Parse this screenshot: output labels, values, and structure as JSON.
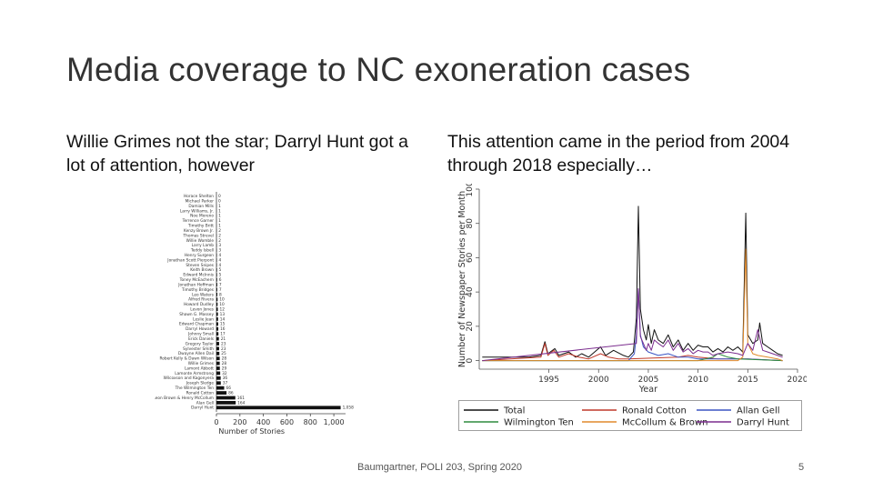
{
  "slide": {
    "title": "Media coverage to NC exoneration cases",
    "left_heading": "Willie Grimes not the star; Darryl Hunt got a lot of attention, however",
    "right_heading": "This attention came in the period from 2004 through 2018 especially…",
    "footer": "Baumgartner, POLI 203, Spring 2020",
    "page_number": "5"
  },
  "chart_data": [
    {
      "type": "bar",
      "orientation": "horizontal",
      "xlabel": "Number of Stories",
      "xlim": [
        0,
        1100
      ],
      "xticks": [
        "0",
        "200",
        "400",
        "600",
        "800",
        "1,000"
      ],
      "categories": [
        "Horace Shelton",
        "Michael Parker",
        "Damian Mills",
        "Larry Williams, Jr.",
        "Noe Moreno",
        "Terrence Garner",
        "Timothy Britt",
        "Kenzy Brown Jr.",
        "Thomas Strevel",
        "Willie Womble",
        "Larry Lamb",
        "Teddy Isbell",
        "Henry Surgeon",
        "Jonathan Scott Pierpont",
        "Steven Snipes",
        "Keith Brown",
        "Edward McInnis",
        "Toney McEachern",
        "Jonathan Hoffman",
        "Timothy Bridges",
        "Leo Waters",
        "Alfred Rivera",
        "Howard Dudley",
        "Levon Jones",
        "Shawn G. Massey",
        "Leslie Jean",
        "Edward Chapman",
        "Darryl Howard",
        "Johnny Small",
        "Erick Daniels",
        "Gregory Taylor",
        "Sylvester Smith",
        "Dwayne Allen Dail",
        "Robert Kelly & Dawn Wilson",
        "Willie Grimes",
        "Lamont Abbott",
        "Lamonte Armstrong",
        "Wilcoxson and Kagonyera",
        "Joseph Sledge",
        "The Wilmington Ten",
        "Ronald Cotton",
        "Leon Brown & Henry McCollum",
        "Alan Gell",
        "Darryl Hunt"
      ],
      "values": [
        0,
        0,
        1,
        1,
        1,
        1,
        1,
        2,
        2,
        2,
        3,
        3,
        4,
        4,
        4,
        5,
        5,
        6,
        7,
        7,
        8,
        10,
        10,
        12,
        13,
        14,
        15,
        16,
        17,
        21,
        23,
        23,
        25,
        28,
        28,
        29,
        32,
        36,
        37,
        66,
        86,
        161,
        164,
        1058
      ],
      "value_labels": [
        "0",
        "0",
        "1",
        "1",
        "1",
        "1",
        "1",
        "2",
        "2",
        "2",
        "3",
        "3",
        "4",
        "4",
        "4",
        "5",
        "5",
        "6",
        "7",
        "7",
        "8",
        "10",
        "10",
        "12",
        "13",
        "14",
        "15",
        "16",
        "17",
        "21",
        "23",
        "23",
        "25",
        "28",
        "28",
        "29",
        "32",
        "36",
        "37",
        "66",
        "86",
        "161",
        "164",
        "1,058"
      ],
      "bar_color": "#111111"
    },
    {
      "type": "line",
      "xlabel": "Year",
      "ylabel": "Number of Newspaper Stories per Month",
      "xlim": [
        1988,
        2020
      ],
      "ylim": [
        -5,
        100
      ],
      "xticks": [
        1995,
        2000,
        2005,
        2010,
        2015,
        2020
      ],
      "yticks": [
        0,
        20,
        40,
        60,
        80,
        100
      ],
      "legend_position": "bottom",
      "series": [
        {
          "name": "Total",
          "color": "#111111",
          "points": [
            [
              1988.3,
              2
            ],
            [
              1990,
              2
            ],
            [
              1993,
              2
            ],
            [
              1994.2,
              3
            ],
            [
              1994.6,
              11
            ],
            [
              1994.9,
              4
            ],
            [
              1995.6,
              7
            ],
            [
              1996,
              3
            ],
            [
              1997,
              5
            ],
            [
              1997.7,
              2
            ],
            [
              1998.3,
              4
            ],
            [
              1999,
              2
            ],
            [
              2000.2,
              8
            ],
            [
              2000.7,
              3
            ],
            [
              2001.5,
              6
            ],
            [
              2002.5,
              3
            ],
            [
              2003,
              2
            ],
            [
              2003.5,
              5
            ],
            [
              2003.8,
              25
            ],
            [
              2004.0,
              90
            ],
            [
              2004.2,
              30
            ],
            [
              2004.5,
              18
            ],
            [
              2004.8,
              12
            ],
            [
              2005.0,
              21
            ],
            [
              2005.3,
              10
            ],
            [
              2005.6,
              18
            ],
            [
              2006,
              12
            ],
            [
              2006.5,
              10
            ],
            [
              2007,
              15
            ],
            [
              2007.5,
              8
            ],
            [
              2008,
              12
            ],
            [
              2008.5,
              6
            ],
            [
              2009,
              10
            ],
            [
              2009.5,
              6
            ],
            [
              2010,
              9
            ],
            [
              2010.5,
              8
            ],
            [
              2011,
              8
            ],
            [
              2011.5,
              5
            ],
            [
              2012,
              7
            ],
            [
              2012.5,
              5
            ],
            [
              2013,
              8
            ],
            [
              2013.5,
              6
            ],
            [
              2014,
              8
            ],
            [
              2014.5,
              5
            ],
            [
              2014.8,
              86
            ],
            [
              2015.0,
              15
            ],
            [
              2015.5,
              10
            ],
            [
              2016,
              12
            ],
            [
              2016.2,
              22
            ],
            [
              2016.5,
              10
            ],
            [
              2017,
              8
            ],
            [
              2017.5,
              6
            ],
            [
              2018,
              4
            ],
            [
              2018.5,
              3
            ]
          ]
        },
        {
          "name": "Ronald Cotton",
          "color": "#c0392b",
          "points": [
            [
              1988.3,
              0
            ],
            [
              1994.2,
              2
            ],
            [
              1994.6,
              10
            ],
            [
              1994.9,
              3
            ],
            [
              1995.5,
              6
            ],
            [
              1996,
              2
            ],
            [
              1997,
              4
            ],
            [
              1998,
              2
            ],
            [
              1999,
              1
            ],
            [
              2000.2,
              4
            ],
            [
              2001,
              2
            ],
            [
              2002,
              1
            ],
            [
              2003,
              1
            ],
            [
              2008,
              2
            ],
            [
              2009,
              3
            ],
            [
              2010,
              2
            ],
            [
              2012,
              1
            ],
            [
              2015,
              1
            ],
            [
              2018.5,
              0
            ]
          ]
        },
        {
          "name": "Allan Gell",
          "color": "#3b55c4",
          "points": [
            [
              1988.3,
              0
            ],
            [
              2003,
              0
            ],
            [
              2003.6,
              4
            ],
            [
              2003.8,
              15
            ],
            [
              2004.0,
              42
            ],
            [
              2004.2,
              15
            ],
            [
              2004.5,
              8
            ],
            [
              2005,
              5
            ],
            [
              2006,
              3
            ],
            [
              2007,
              4
            ],
            [
              2008,
              2
            ],
            [
              2009,
              2
            ],
            [
              2010,
              1
            ],
            [
              2012,
              1
            ],
            [
              2015,
              1
            ],
            [
              2018.5,
              0
            ]
          ]
        },
        {
          "name": "Wilmington Ten",
          "color": "#2e8b3e",
          "points": [
            [
              1988.3,
              0
            ],
            [
              2010,
              0
            ],
            [
              2011.5,
              2
            ],
            [
              2012,
              4
            ],
            [
              2012.5,
              3
            ],
            [
              2013,
              2
            ],
            [
              2014,
              1
            ],
            [
              2018.5,
              0
            ]
          ]
        },
        {
          "name": "McCollum & Brown",
          "color": "#e08a2c",
          "points": [
            [
              1988.3,
              0
            ],
            [
              2014,
              0
            ],
            [
              2014.5,
              2
            ],
            [
              2014.8,
              65
            ],
            [
              2015.0,
              10
            ],
            [
              2015.5,
              4
            ],
            [
              2016,
              3
            ],
            [
              2017,
              2
            ],
            [
              2018,
              1
            ],
            [
              2018.5,
              0
            ]
          ]
        },
        {
          "name": "Darryl Hunt",
          "color": "#7b2d8e",
          "points": [
            [
              1988.3,
              0
            ],
            [
              2003.8,
              10
            ],
            [
              2004.0,
              42
            ],
            [
              2004.2,
              14
            ],
            [
              2004.5,
              10
            ],
            [
              2004.8,
              6
            ],
            [
              2005.0,
              10
            ],
            [
              2005.3,
              6
            ],
            [
              2005.6,
              12
            ],
            [
              2006,
              10
            ],
            [
              2006.5,
              8
            ],
            [
              2007,
              12
            ],
            [
              2007.5,
              6
            ],
            [
              2008,
              10
            ],
            [
              2008.5,
              5
            ],
            [
              2009,
              7
            ],
            [
              2009.5,
              4
            ],
            [
              2010,
              6
            ],
            [
              2010.5,
              5
            ],
            [
              2011,
              5
            ],
            [
              2011.5,
              3
            ],
            [
              2012,
              4
            ],
            [
              2013,
              5
            ],
            [
              2014,
              4
            ],
            [
              2014.5,
              3
            ],
            [
              2015,
              10
            ],
            [
              2015.5,
              6
            ],
            [
              2016,
              18
            ],
            [
              2016.5,
              6
            ],
            [
              2017,
              5
            ],
            [
              2018,
              3
            ],
            [
              2018.5,
              2
            ]
          ]
        }
      ]
    }
  ]
}
